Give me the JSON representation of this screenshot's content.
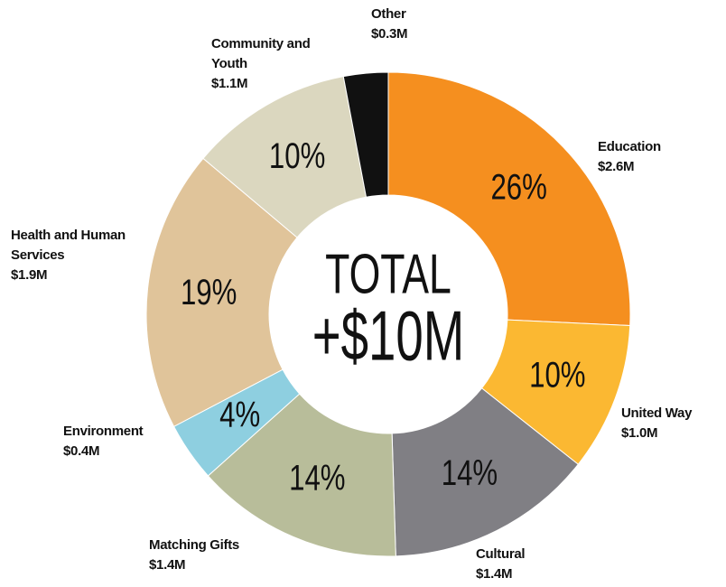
{
  "chart_data": {
    "type": "donut",
    "center_title": "TOTAL",
    "center_value": "+$10M",
    "categories": [
      "Education",
      "United Way",
      "Cultural",
      "Matching Gifts",
      "Environment",
      "Health and Human Services",
      "Community and Youth",
      "Other"
    ],
    "values": [
      2.6,
      1.0,
      1.4,
      1.4,
      0.4,
      1.9,
      1.1,
      0.3
    ],
    "value_labels": [
      "$2.6M",
      "$1.0M",
      "$1.4M",
      "$1.4M",
      "$0.4M",
      "$1.9M",
      "$1.1M",
      "$0.3M"
    ],
    "percent_labels": [
      "26%",
      "10%",
      "14%",
      "14%",
      "4%",
      "19%",
      "10%",
      null
    ],
    "colors": [
      "#f58f1f",
      "#fbb832",
      "#807f84",
      "#b8bd9a",
      "#8ecfe0",
      "#e0c49a",
      "#dbd7bf",
      "#111111"
    ]
  }
}
